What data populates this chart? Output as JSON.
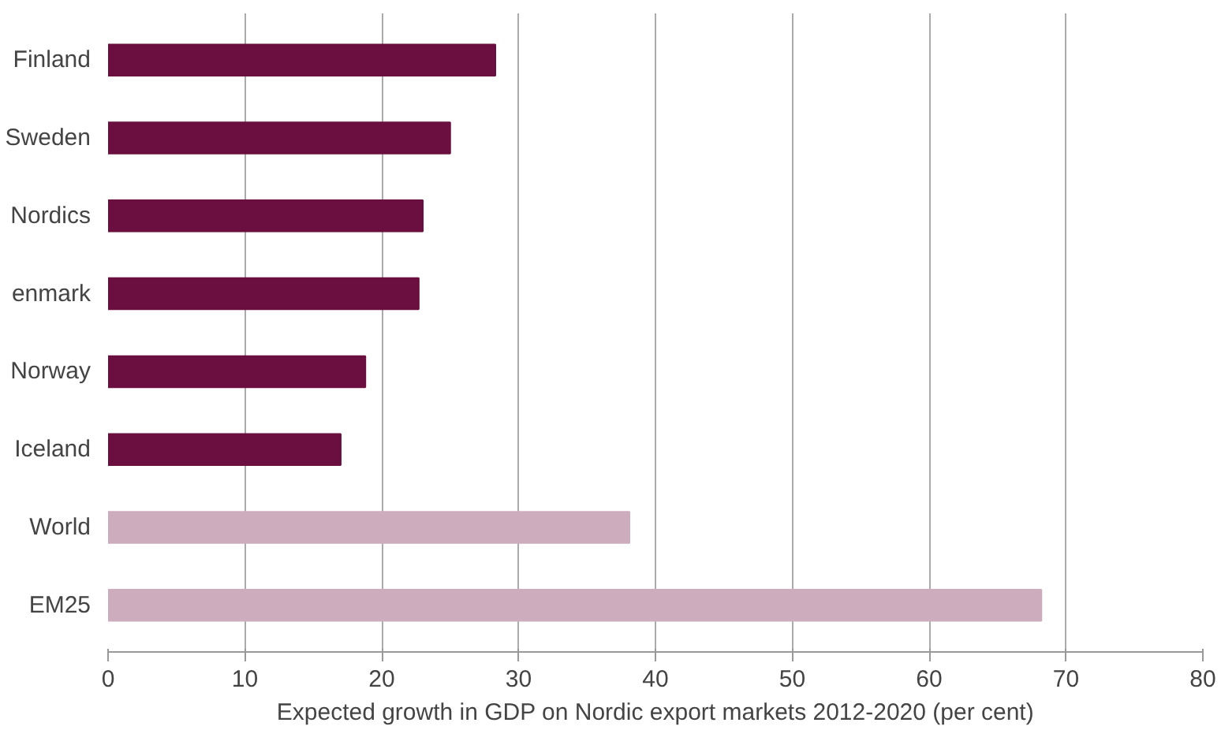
{
  "chart_data": {
    "type": "bar",
    "orientation": "horizontal",
    "xlabel": "Expected growth in GDP on Nordic export markets 2012-2020 (per cent)",
    "categories": [
      "Finland",
      "Sweden",
      "Nordics",
      "enmark",
      "Norway",
      "Iceland",
      "World",
      "EM25"
    ],
    "values": [
      28.3,
      25.0,
      23.0,
      22.7,
      18.8,
      17.0,
      38.1,
      68.2
    ],
    "colors": [
      "#6a0f3f",
      "#6a0f3f",
      "#6a0f3f",
      "#6a0f3f",
      "#6a0f3f",
      "#6a0f3f",
      "#cdadbd",
      "#cdadbd"
    ],
    "xlim": [
      0,
      80
    ],
    "xticks": [
      0,
      10,
      20,
      30,
      40,
      50,
      60,
      70,
      80
    ],
    "grid": "x"
  }
}
